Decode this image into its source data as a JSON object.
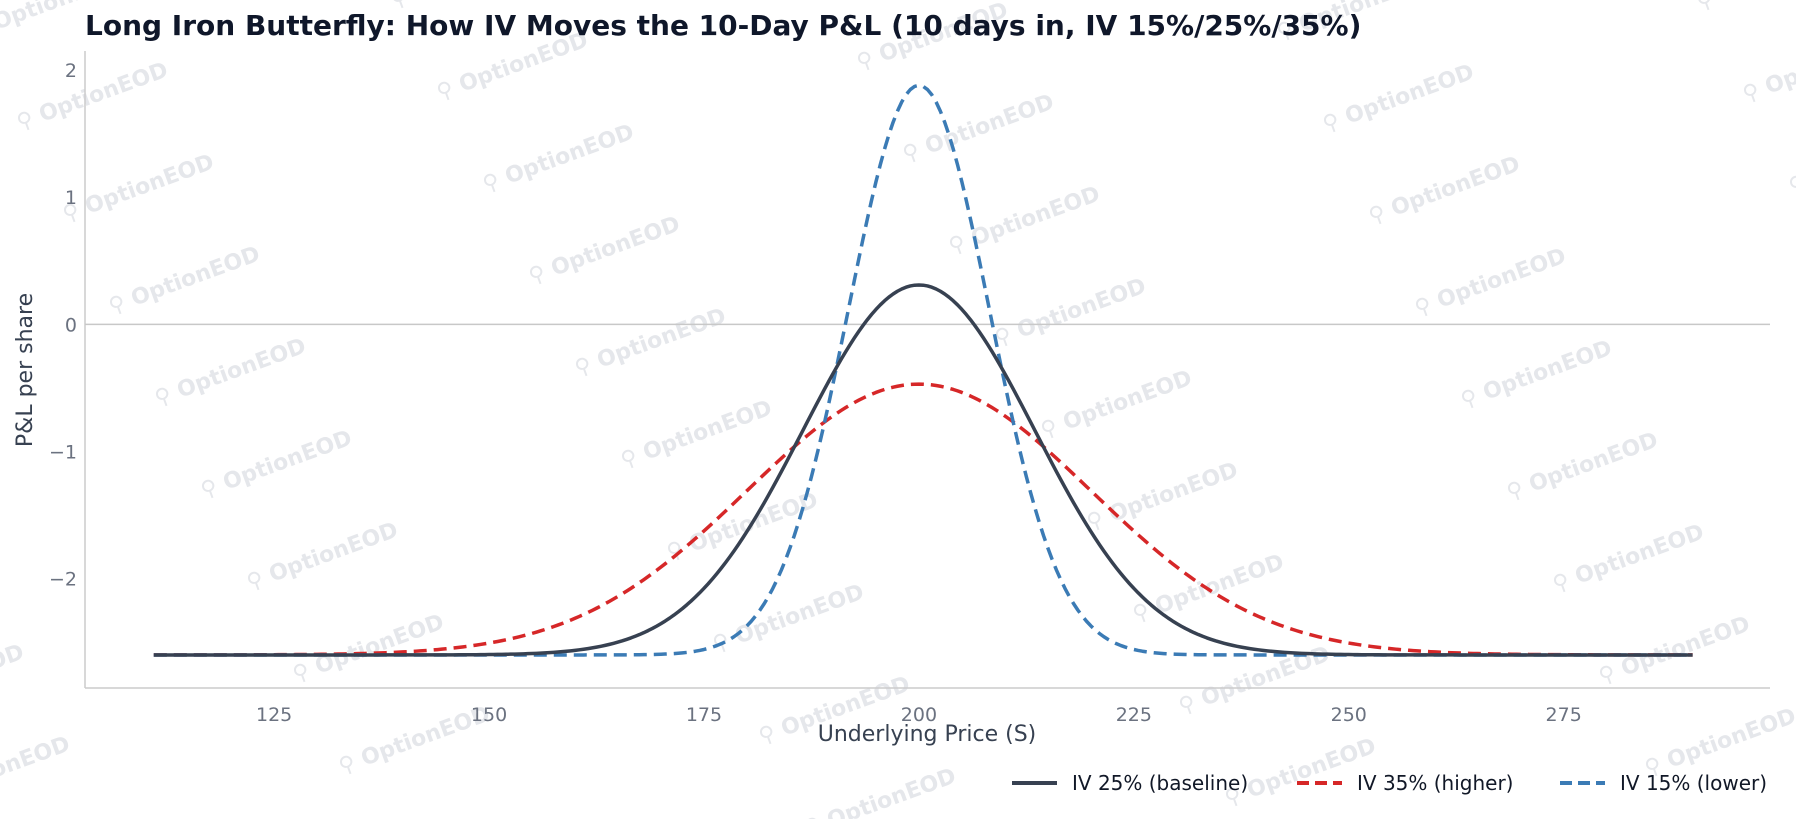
{
  "watermark": "OptionEOD",
  "chart_data": {
    "type": "line",
    "title": "Long Iron Butterfly: How IV Moves the 10-Day P&L (10 days in, IV 15%/25%/35%)",
    "xlabel": "Underlying Price (S)",
    "ylabel": "P&L per share",
    "xlim": [
      103,
      299
    ],
    "ylim": [
      -2.86,
      2.15
    ],
    "x_ticks": [
      125,
      150,
      175,
      200,
      225,
      250,
      275
    ],
    "y_ticks": [
      -2,
      -1,
      0,
      1,
      2
    ],
    "x_tick_labels": [
      "125",
      "150",
      "175",
      "200",
      "225",
      "250",
      "275"
    ],
    "y_tick_labels": [
      "−2",
      "−1",
      "0",
      "1",
      "2"
    ],
    "zero_line": 0,
    "grid": false,
    "legend_position": "bottom-right",
    "x_range": [
      111,
      290
    ],
    "center": 200,
    "floor": -2.6,
    "series": [
      {
        "name": "IV 25% (baseline)",
        "color": "#374151",
        "dash": "solid",
        "peak": 0.31,
        "sigma": 13.5
      },
      {
        "name": "IV 35% (higher)",
        "color": "#d62728",
        "dash": "dashed",
        "peak": -0.47,
        "sigma": 20
      },
      {
        "name": "IV 15% (lower)",
        "color": "#3b7bb5",
        "dash": "dashed",
        "peak": 1.88,
        "sigma": 8.2
      }
    ]
  }
}
